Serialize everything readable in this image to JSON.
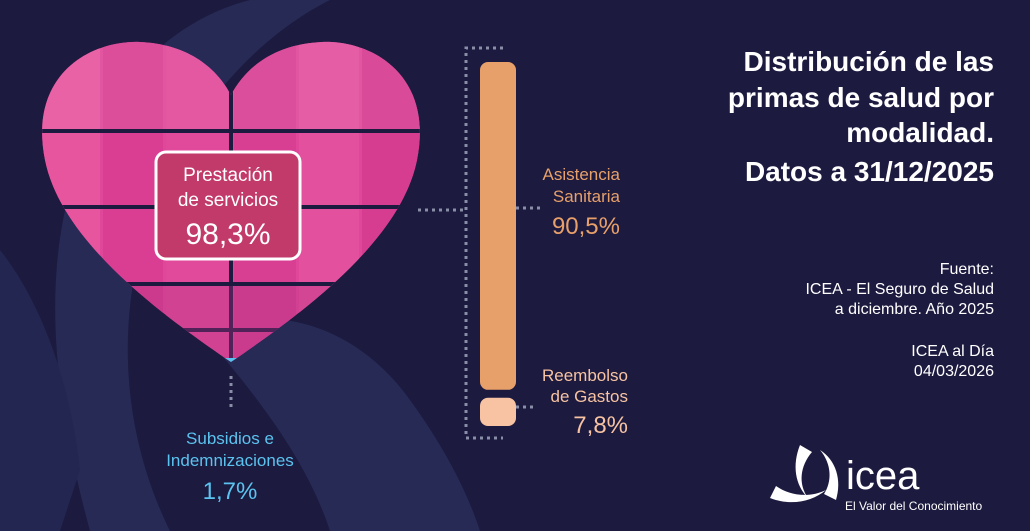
{
  "title_lines": [
    "Distribución de las",
    "primas de salud por",
    "modalidad.",
    "Datos a 31/12/2025"
  ],
  "source": {
    "lines": [
      "Fuente:",
      "ICEA - El Seguro de Salud",
      "a diciembre. Año 2025"
    ],
    "pub_lines": [
      "ICEA al Día",
      "04/03/2026"
    ]
  },
  "brand": {
    "name": "icea",
    "tagline": "El Valor del Conocimiento",
    "logo_icon": "icea-triskelion-icon"
  },
  "colors": {
    "background": "#1c1a3f",
    "heart_pink": "#e0479a",
    "heart_light": "#ed6fb2",
    "heart_bottom": "#5bc3ef",
    "callout_bg": "#c23a69",
    "asistencia": "#e8a06a",
    "reembolso": "#f7c3a2",
    "subsidios_text": "#5bc3ef",
    "asistencia_text": "#e8a06a",
    "reembolso_text": "#f7c3a2"
  },
  "chart_data": {
    "type": "bar",
    "categories": [
      "Prestación de servicios",
      "Subsidios e Indemnizaciones"
    ],
    "values": [
      98.3,
      1.7
    ],
    "unit": "%",
    "subcategories": {
      "parent": "Prestación de servicios",
      "categories": [
        "Asistencia Sanitaria",
        "Reembolso de Gastos"
      ],
      "values": [
        90.5,
        7.8
      ]
    },
    "labels": {
      "prestacion": {
        "lines": [
          "Prestación",
          "de servicios"
        ],
        "value": "98,3%"
      },
      "subsidios": {
        "lines": [
          "Subsidios e",
          "Indemnizaciones"
        ],
        "value": "1,7%"
      },
      "asistencia": {
        "lines": [
          "Asistencia",
          "Sanitaria"
        ],
        "value": "90,5%"
      },
      "reembolso": {
        "lines": [
          "Reembolso",
          "de Gastos"
        ],
        "value": "7,8%"
      }
    }
  }
}
